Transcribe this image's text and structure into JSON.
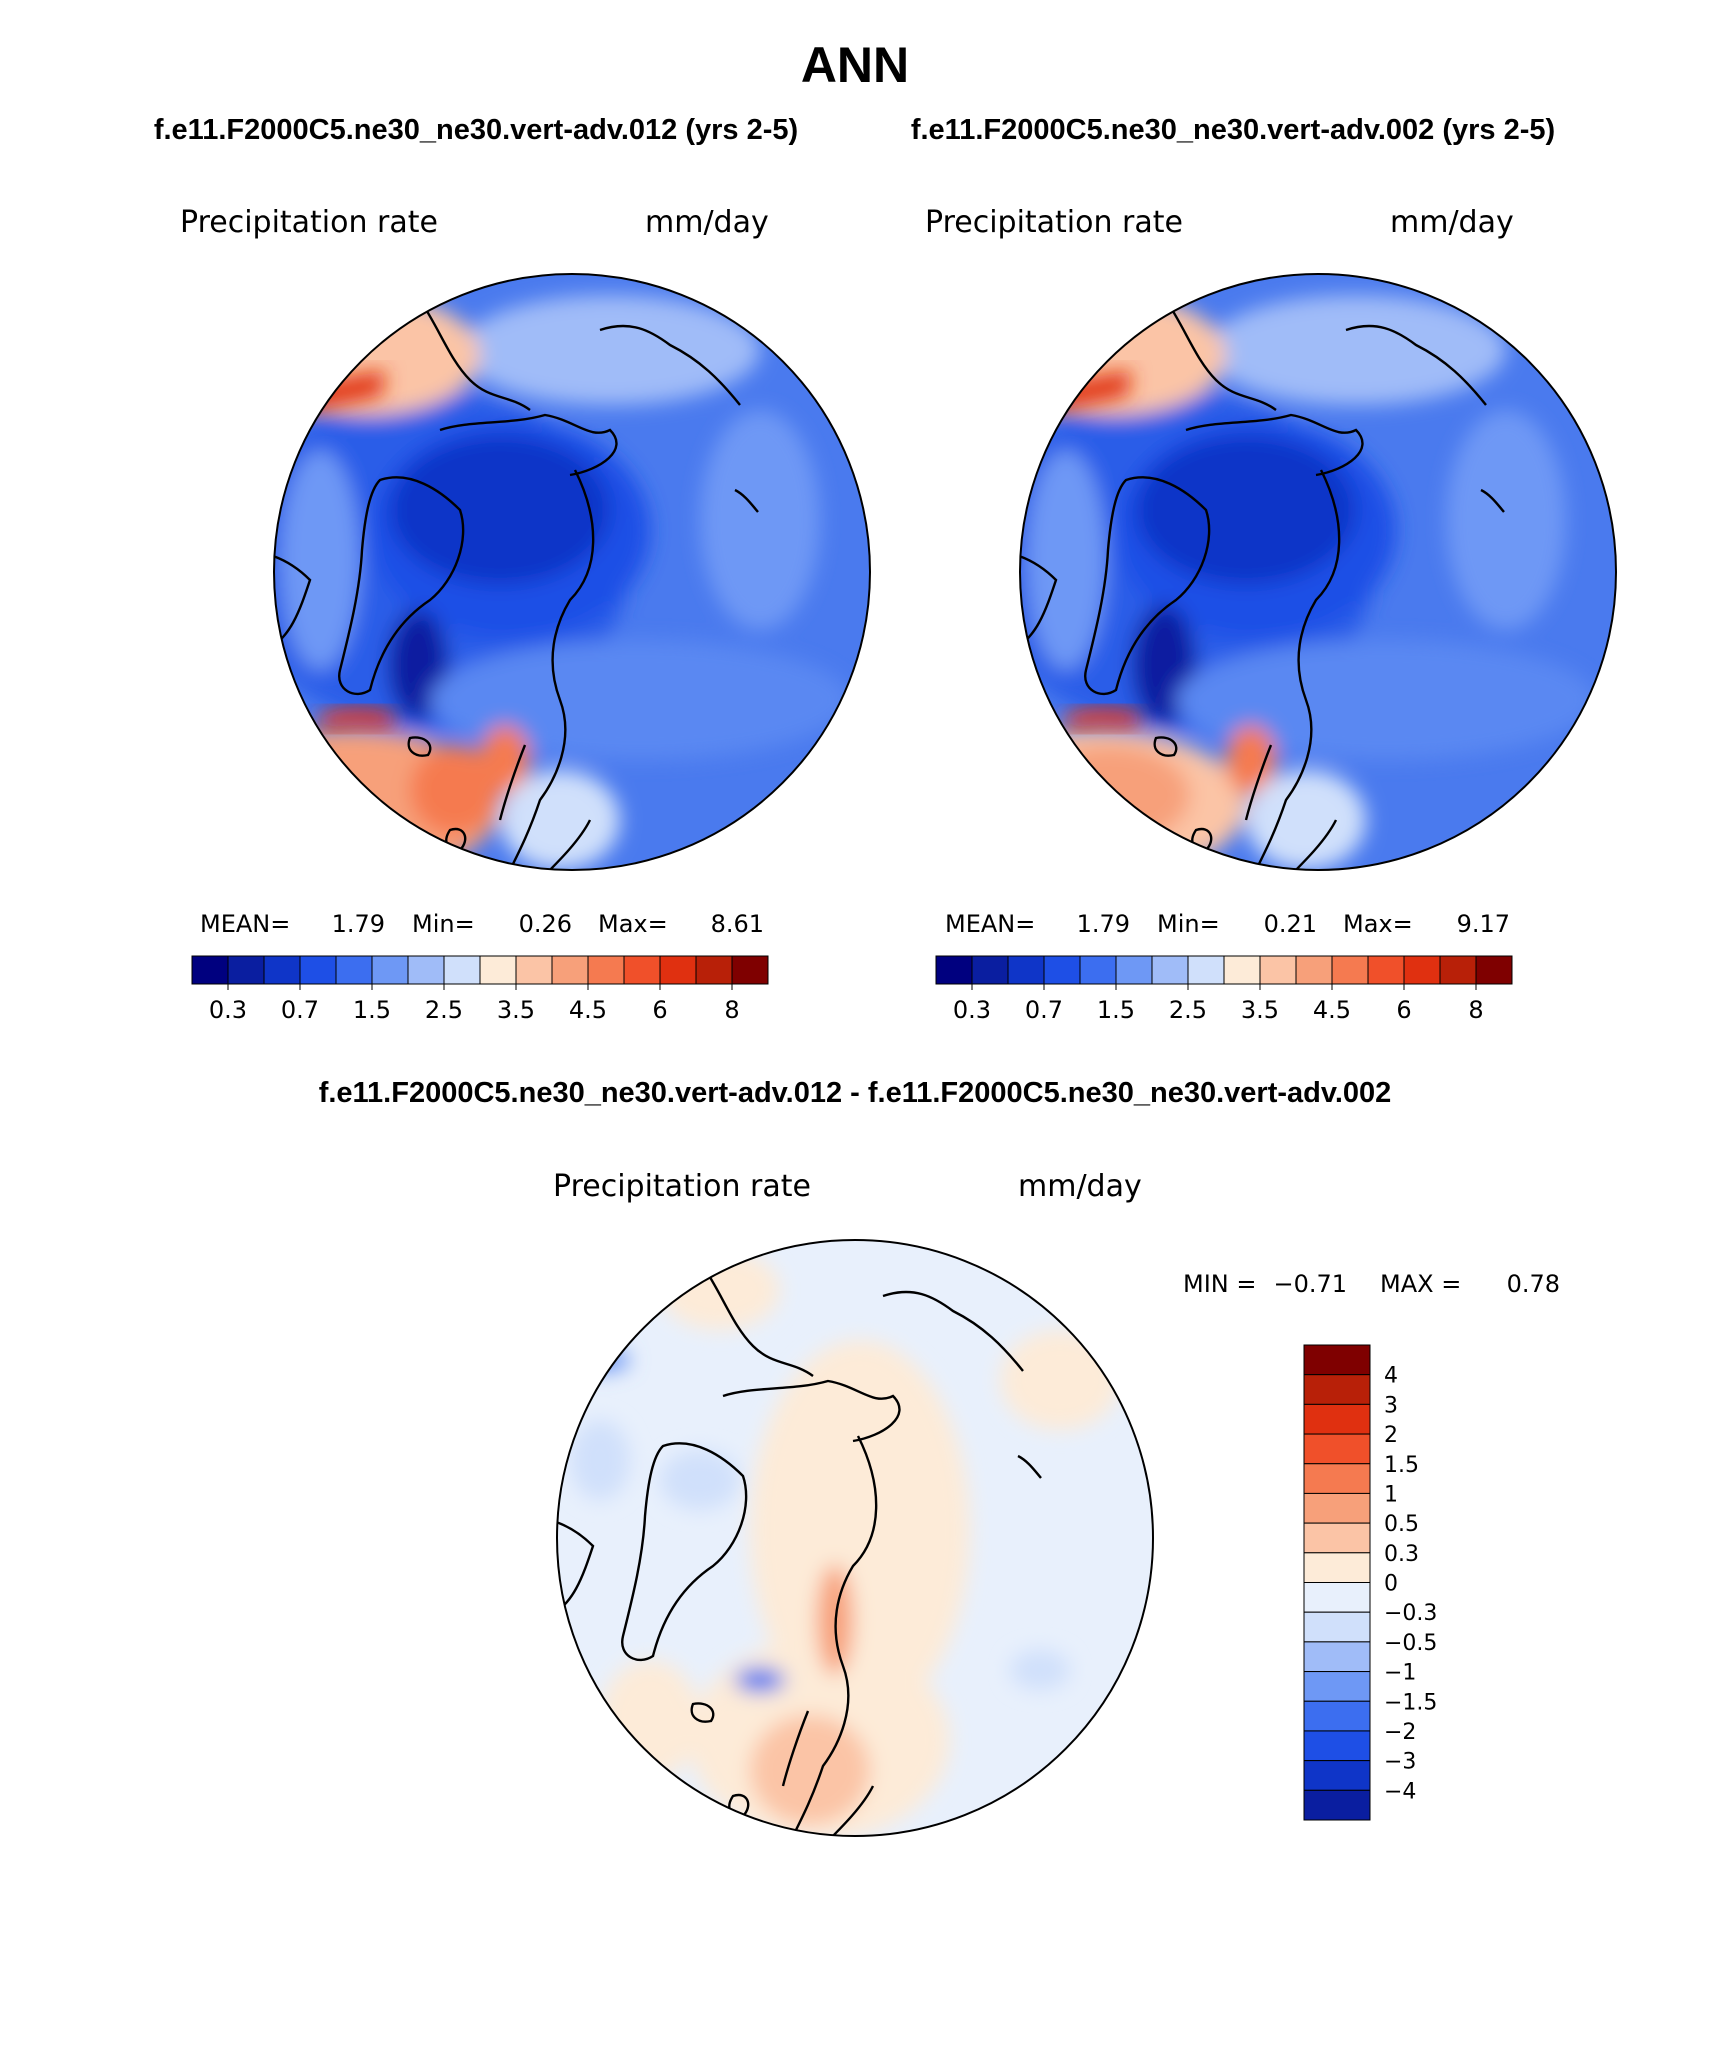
{
  "page": {
    "title": "ANN",
    "case_a_heading": "f.e11.F2000C5.ne30_ne30.vert-adv.012 (yrs 2-5)",
    "case_b_heading": "f.e11.F2000C5.ne30_ne30.vert-adv.002 (yrs 2-5)",
    "diff_heading": "f.e11.F2000C5.ne30_ne30.vert-adv.012 - f.e11.F2000C5.ne30_ne30.vert-adv.002"
  },
  "chart_data": [
    {
      "type": "heatmap",
      "projection": "polar-stereographic-north",
      "variable": "Precipitation rate",
      "units": "mm/day",
      "stats": {
        "mean_label": "MEAN=",
        "mean": "1.79",
        "min_label": "Min=",
        "min": "0.26",
        "max_label": "Max=",
        "max": "8.61"
      },
      "colorbar": {
        "orientation": "horizontal",
        "levels": [
          "0.2",
          "0.3",
          "0.5",
          "0.7",
          "1",
          "1.5",
          "2",
          "2.5",
          "3",
          "3.5",
          "4",
          "4.5",
          "5",
          "6",
          "7",
          "8"
        ],
        "tick_labels": [
          "0.3",
          "0.7",
          "1.5",
          "2.5",
          "3.5",
          "4.5",
          "6",
          "8"
        ],
        "colors": [
          "#00007f",
          "#0a1ea0",
          "#0f35c8",
          "#1e4fe6",
          "#3c6ef0",
          "#6e98f5",
          "#a0bcf8",
          "#d0e0fb",
          "#fdebd8",
          "#fbc4a6",
          "#f7a07a",
          "#f57a50",
          "#f0502a",
          "#e03010",
          "#b82008",
          "#7f0000"
        ]
      }
    },
    {
      "type": "heatmap",
      "projection": "polar-stereographic-north",
      "variable": "Precipitation rate",
      "units": "mm/day",
      "stats": {
        "mean_label": "MEAN=",
        "mean": "1.79",
        "min_label": "Min=",
        "min": "0.21",
        "max_label": "Max=",
        "max": "9.17"
      },
      "colorbar": {
        "orientation": "horizontal",
        "levels": [
          "0.2",
          "0.3",
          "0.5",
          "0.7",
          "1",
          "1.5",
          "2",
          "2.5",
          "3",
          "3.5",
          "4",
          "4.5",
          "5",
          "6",
          "7",
          "8"
        ],
        "tick_labels": [
          "0.3",
          "0.7",
          "1.5",
          "2.5",
          "3.5",
          "4.5",
          "6",
          "8"
        ],
        "colors": [
          "#00007f",
          "#0a1ea0",
          "#0f35c8",
          "#1e4fe6",
          "#3c6ef0",
          "#6e98f5",
          "#a0bcf8",
          "#d0e0fb",
          "#fdebd8",
          "#fbc4a6",
          "#f7a07a",
          "#f57a50",
          "#f0502a",
          "#e03010",
          "#b82008",
          "#7f0000"
        ]
      }
    },
    {
      "type": "heatmap",
      "projection": "polar-stereographic-north",
      "variable": "Precipitation rate",
      "units": "mm/day",
      "stats": {
        "min_label": "MIN =",
        "min": "−0.71",
        "max_label": "MAX =",
        "max": "0.78"
      },
      "colorbar": {
        "orientation": "vertical",
        "labels_top_to_bottom": [
          "4",
          "3",
          "2",
          "1.5",
          "1",
          "0.5",
          "0.3",
          "0",
          "−0.3",
          "−0.5",
          "−1",
          "−1.5",
          "−2",
          "−3",
          "−4"
        ],
        "colors_top_to_bottom": [
          "#7f0000",
          "#b82008",
          "#e03010",
          "#f0502a",
          "#f57a50",
          "#f7a07a",
          "#fbc4a6",
          "#fdebd8",
          "#e8f0fc",
          "#d0e0fb",
          "#a0bcf8",
          "#6e98f5",
          "#3c6ef0",
          "#1e4fe6",
          "#0f35c8",
          "#0a1ea0"
        ]
      }
    }
  ]
}
